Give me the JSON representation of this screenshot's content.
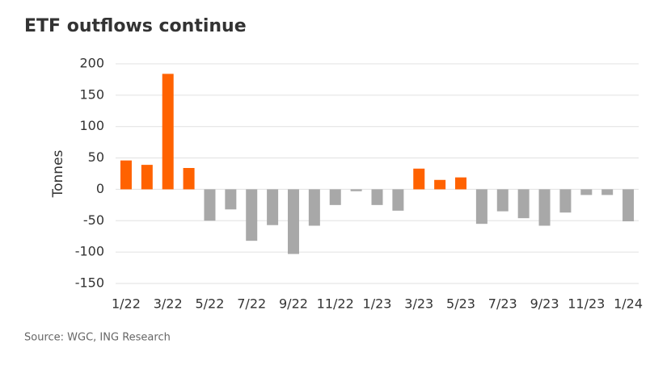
{
  "chart_data": {
    "type": "bar",
    "title": "ETF outflows continue",
    "y_label": "Tonnes",
    "source": "Source: WGC, ING Research",
    "categories": [
      "1/22",
      null,
      "3/22",
      null,
      "5/22",
      null,
      "7/22",
      null,
      "9/22",
      null,
      "11/22",
      null,
      "1/23",
      null,
      "3/23",
      null,
      "5/23",
      null,
      "7/23",
      null,
      "9/23",
      null,
      "11/23",
      null,
      "1/24"
    ],
    "values": [
      46,
      39,
      184,
      34,
      -50,
      -32,
      -82,
      -57,
      -103,
      -58,
      -25,
      -3,
      -25,
      -34,
      33,
      15,
      19,
      -55,
      -35,
      -46,
      -58,
      -37,
      -9,
      -9,
      -51
    ],
    "positive_color": "#ff6200",
    "negative_color": "#a8a8a8",
    "ylim": [
      -150,
      200
    ],
    "yticks": [
      -150,
      -100,
      -50,
      0,
      50,
      100,
      150,
      200
    ],
    "grid": true
  }
}
